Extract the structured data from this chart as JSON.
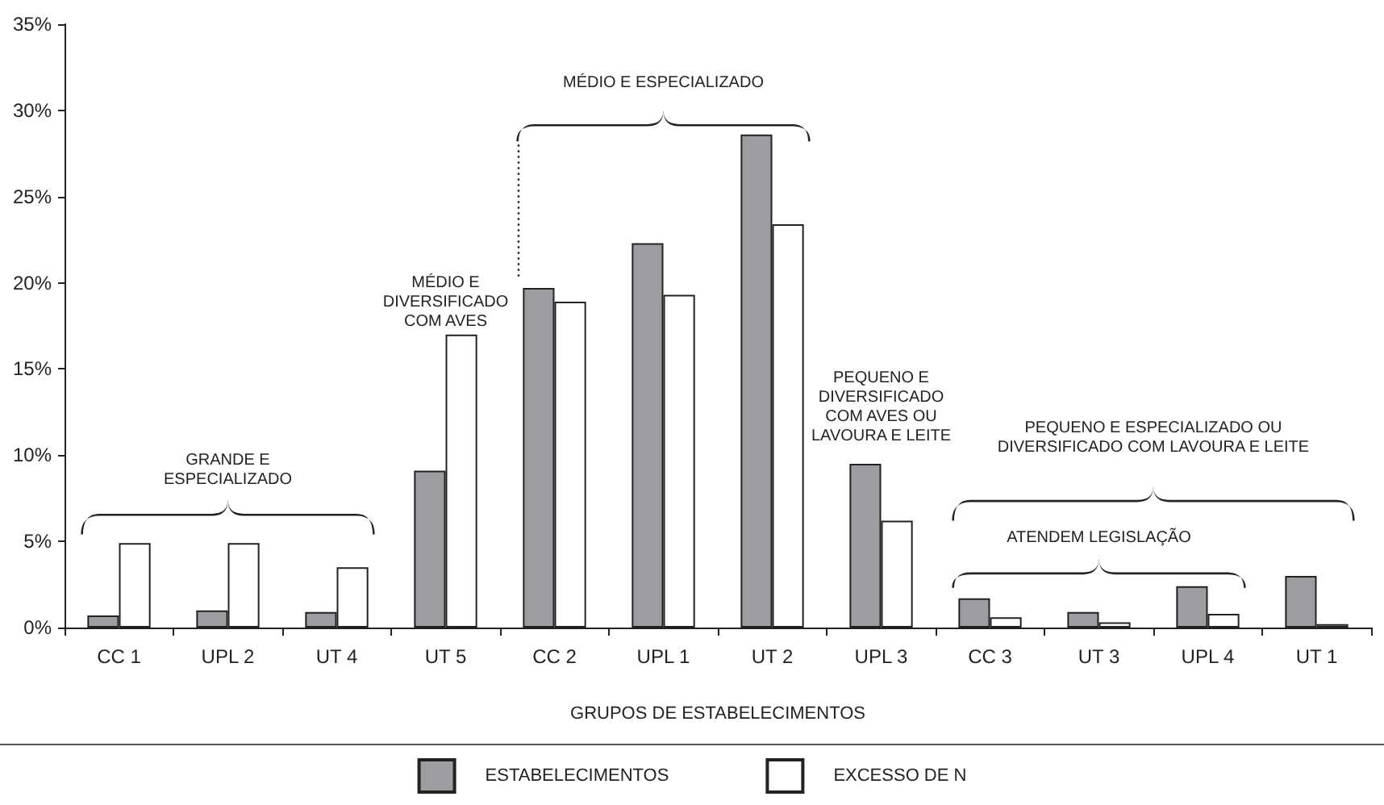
{
  "chart_data": {
    "type": "bar",
    "xlabel": "GRUPOS DE ESTABELECIMENTOS",
    "categories": [
      "CC 1",
      "UPL 2",
      "UT 4",
      "UT 5",
      "CC 2",
      "UPL 1",
      "UT 2",
      "UPL 3",
      "CC 3",
      "UT 3",
      "UPL 4",
      "UT 1"
    ],
    "series": [
      {
        "name": "ESTABELECIMENTOS",
        "color": "#9b9da0",
        "values": [
          0.7,
          1.0,
          0.9,
          9.1,
          19.7,
          22.3,
          28.6,
          9.5,
          1.7,
          0.9,
          2.4,
          3.0
        ]
      },
      {
        "name": "EXCESSO DE N",
        "color": "#ffffff",
        "values": [
          4.9,
          4.9,
          3.5,
          17.0,
          18.9,
          19.3,
          23.4,
          6.2,
          0.6,
          0.3,
          0.8,
          0.2
        ]
      }
    ],
    "ylim": [
      0,
      35
    ],
    "yticks": [
      {
        "value": 0,
        "label": "0%"
      },
      {
        "value": 5,
        "label": "5%"
      },
      {
        "value": 10,
        "label": "10%"
      },
      {
        "value": 15,
        "label": "15%"
      },
      {
        "value": 20,
        "label": "20%"
      },
      {
        "value": 25,
        "label": "25%"
      },
      {
        "value": 30,
        "label": "30%"
      },
      {
        "value": 35,
        "label": "35%"
      }
    ],
    "annotations": [
      "GRANDE E ESPECIALIZADO",
      "MÉDIO E DIVERSIFICADO COM AVES",
      "MÉDIO E ESPECIALIZADO",
      "PEQUENO E DIVERSIFICADO COM AVES OU LAVOURA E LEITE",
      "PEQUENO E ESPECIALIZADO OU DIVERSIFICADO COM LAVOURA E LEITE",
      "ATENDEM LEGISLAÇÃO"
    ],
    "grid": false,
    "legend": "bottom"
  }
}
